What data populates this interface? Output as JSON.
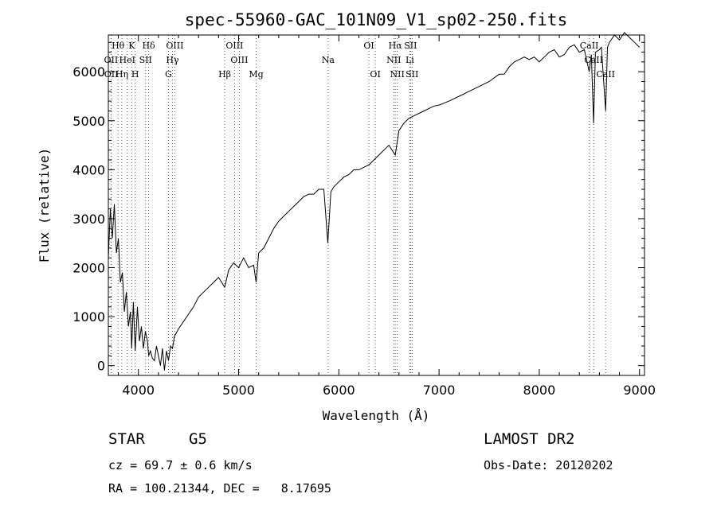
{
  "chart_data": {
    "type": "line",
    "title": "spec-55960-GAC_101N09_V1_sp02-250.fits",
    "xlabel": "Wavelength (Å)",
    "ylabel": "Flux (relative)",
    "xlim": [
      3700,
      9050
    ],
    "ylim": [
      -200,
      6750
    ],
    "xticks": [
      4000,
      5000,
      6000,
      7000,
      8000,
      9000
    ],
    "yticks": [
      0,
      1000,
      2000,
      3000,
      4000,
      5000,
      6000
    ],
    "series": [
      {
        "x": [
          3700,
          3720,
          3740,
          3760,
          3780,
          3800,
          3820,
          3840,
          3860,
          3880,
          3900,
          3920,
          3933,
          3950,
          3968,
          3990,
          4010,
          4030,
          4050,
          4070,
          4090,
          4102,
          4120,
          4140,
          4160,
          4180,
          4200,
          4220,
          4240,
          4260,
          4280,
          4300,
          4320,
          4340,
          4360,
          4400,
          4450,
          4500,
          4550,
          4600,
          4650,
          4700,
          4750,
          4800,
          4861,
          4900,
          4950,
          5000,
          5050,
          5100,
          5150,
          5175,
          5200,
          5250,
          5300,
          5350,
          5400,
          5450,
          5500,
          5550,
          5600,
          5650,
          5700,
          5750,
          5800,
          5850,
          5890,
          5920,
          5950,
          6000,
          6050,
          6100,
          6150,
          6200,
          6250,
          6300,
          6350,
          6400,
          6450,
          6500,
          6563,
          6600,
          6650,
          6700,
          6750,
          6800,
          6850,
          6900,
          6950,
          7000,
          7100,
          7200,
          7300,
          7400,
          7500,
          7600,
          7650,
          7700,
          7750,
          7800,
          7850,
          7900,
          7950,
          8000,
          8050,
          8100,
          8150,
          8200,
          8250,
          8300,
          8350,
          8400,
          8450,
          8498,
          8520,
          8542,
          8560,
          8600,
          8620,
          8662,
          8680,
          8700,
          8750,
          8800,
          8850,
          8900,
          8950,
          9000
        ],
        "y": [
          2200,
          3200,
          2600,
          3300,
          2300,
          2600,
          1700,
          1900,
          1100,
          1500,
          800,
          1100,
          350,
          1300,
          300,
          1200,
          500,
          800,
          350,
          700,
          500,
          200,
          300,
          150,
          100,
          400,
          200,
          0,
          350,
          -100,
          300,
          100,
          400,
          350,
          600,
          750,
          900,
          1050,
          1200,
          1400,
          1500,
          1600,
          1700,
          1800,
          1600,
          1950,
          2100,
          2000,
          2200,
          2000,
          2050,
          1700,
          2300,
          2400,
          2600,
          2800,
          2950,
          3050,
          3150,
          3250,
          3350,
          3450,
          3500,
          3500,
          3600,
          3600,
          2500,
          3550,
          3650,
          3750,
          3850,
          3900,
          4000,
          4000,
          4050,
          4100,
          4200,
          4300,
          4400,
          4500,
          4300,
          4800,
          4950,
          5050,
          5100,
          5150,
          5200,
          5250,
          5300,
          5320,
          5400,
          5500,
          5600,
          5700,
          5800,
          5950,
          5950,
          6100,
          6200,
          6250,
          6300,
          6250,
          6300,
          6200,
          6300,
          6400,
          6450,
          6300,
          6350,
          6500,
          6550,
          6400,
          6450,
          6000,
          6350,
          4950,
          6400,
          6450,
          6500,
          5200,
          6500,
          6600,
          6750,
          6650,
          6800,
          6700,
          6600,
          6500
        ]
      }
    ],
    "lines_top": [
      {
        "label": "Hθ",
        "x": 3797
      },
      {
        "label": "K",
        "x": 3933
      },
      {
        "label": "Hδ",
        "x": 4102
      },
      {
        "label": "OIII",
        "x": 4363
      },
      {
        "label": "OIII",
        "x": 4959
      },
      {
        "label": "OI",
        "x": 6300
      },
      {
        "label": "Hα",
        "x": 6563
      },
      {
        "label": "SII",
        "x": 6716
      },
      {
        "label": "CaII",
        "x": 8498
      }
    ],
    "lines_mid": [
      {
        "label": "OII",
        "x": 3727
      },
      {
        "label": "HeI",
        "x": 3889
      },
      {
        "label": "SII",
        "x": 4072
      },
      {
        "label": "Hγ",
        "x": 4340
      },
      {
        "label": "OIII",
        "x": 5007
      },
      {
        "label": "Na",
        "x": 5893
      },
      {
        "label": "NII",
        "x": 6548
      },
      {
        "label": "Li",
        "x": 6708
      },
      {
        "label": "CaII",
        "x": 8542
      }
    ],
    "lines_bot": [
      {
        "label": "OII",
        "x": 3729
      },
      {
        "label": "Hη",
        "x": 3835
      },
      {
        "label": "H",
        "x": 3968
      },
      {
        "label": "G",
        "x": 4300
      },
      {
        "label": "Hβ",
        "x": 4861
      },
      {
        "label": "Mg",
        "x": 5175
      },
      {
        "label": "OI",
        "x": 6364
      },
      {
        "label": "NII",
        "x": 6583
      },
      {
        "label": "SII",
        "x": 6731
      },
      {
        "label": "CaII",
        "x": 8662
      }
    ]
  },
  "info": {
    "object_type": "STAR",
    "subclass": "G5",
    "cz": "cz = 69.7 ± 0.6 km/s",
    "coords": "RA = 100.21344, DEC =   8.17695",
    "survey": "LAMOST DR2",
    "obs_date": "Obs-Date: 20120202"
  }
}
